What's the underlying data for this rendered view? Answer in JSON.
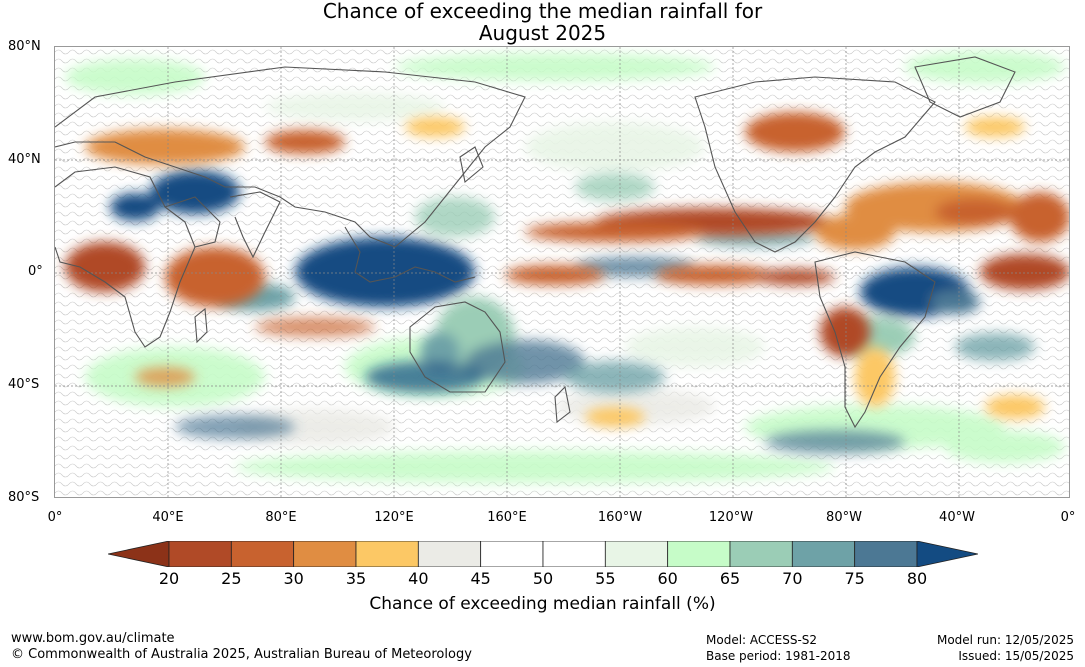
{
  "title": {
    "line1": "Chance of exceeding the median rainfall for",
    "line2": "August 2025"
  },
  "map": {
    "lat_labels": [
      "80°N",
      "40°N",
      "0°",
      "40°S",
      "80°S"
    ],
    "lon_labels": [
      "0°",
      "40°E",
      "80°E",
      "120°E",
      "160°E",
      "160°W",
      "120°W",
      "80°W",
      "40°W",
      "0°"
    ]
  },
  "legend": {
    "ticks": [
      "20",
      "25",
      "30",
      "35",
      "40",
      "45",
      "50",
      "55",
      "60",
      "65",
      "70",
      "75",
      "80"
    ],
    "colors": [
      "#b04a27",
      "#c8622f",
      "#e08d42",
      "#fcc865",
      "#ebebe6",
      "#ffffff",
      "#ffffff",
      "#e8f5e6",
      "#c6fcc8",
      "#9bcdb6",
      "#6ea2a7",
      "#4c7894"
    ],
    "low_color": "#8c3218",
    "high_color": "#134b82",
    "label": "Chance of exceeding median rainfall (%)"
  },
  "footer": {
    "url": "www.bom.gov.au/climate",
    "copyright": "© Commonwealth of Australia 2025, Australian Bureau of Meteorology",
    "model": "Model: ACCESS-S2",
    "base_period": "Base period: 1981-2018",
    "model_run": "Model run: 12/05/2025",
    "issued": "Issued: 15/05/2025"
  }
}
